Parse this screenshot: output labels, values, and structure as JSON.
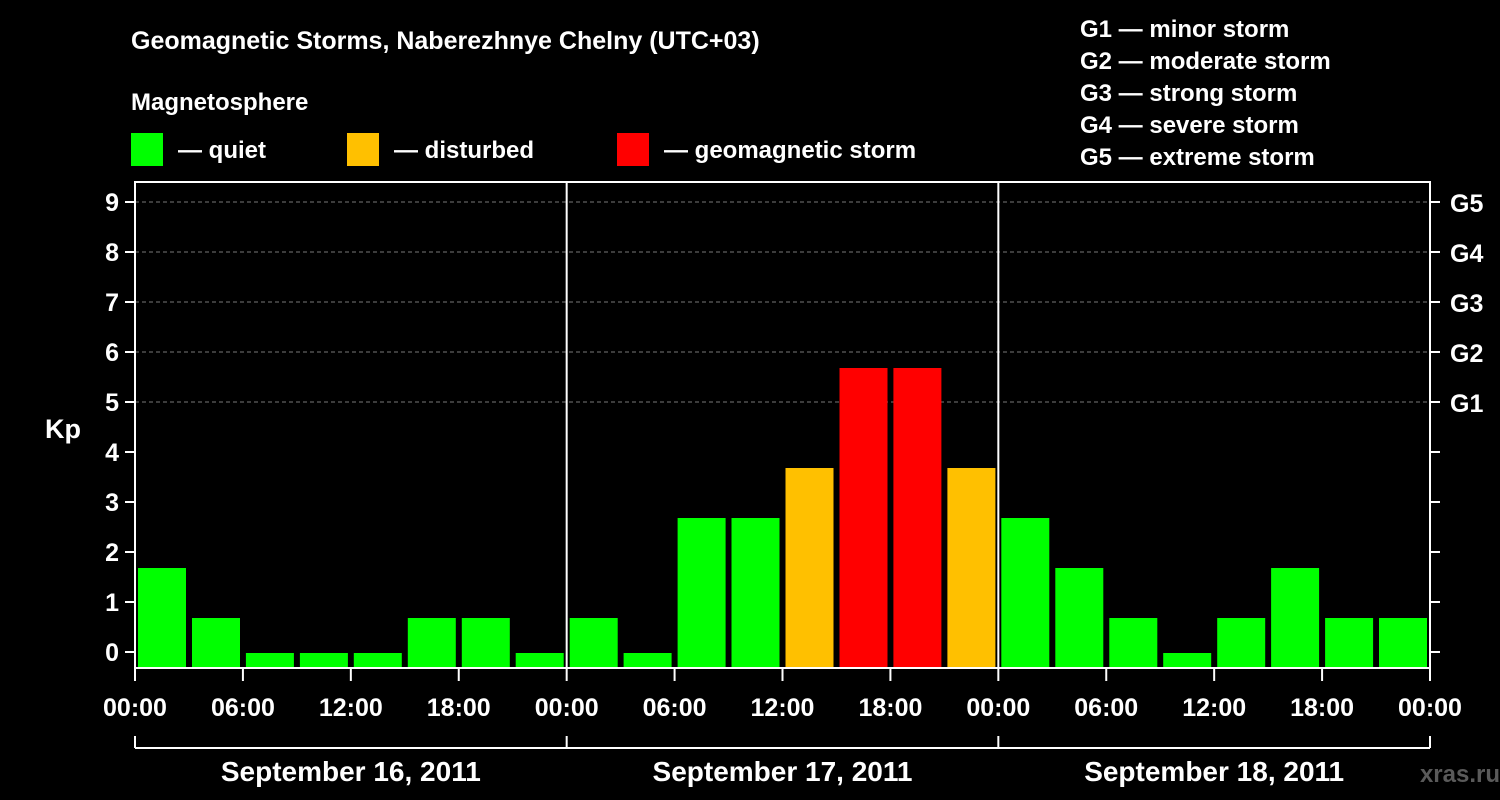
{
  "chart_data": {
    "type": "bar",
    "title": "Geomagnetic Storms, Naberezhnye Chelny (UTC+03)",
    "subtitle": "Magnetosphere",
    "ylabel": "Kp",
    "ylim": [
      0,
      9
    ],
    "y_ticks": [
      "0",
      "1",
      "2",
      "3",
      "4",
      "5",
      "6",
      "7",
      "8",
      "9"
    ],
    "storm_levels": [
      {
        "label": "G1",
        "kp": 5
      },
      {
        "label": "G2",
        "kp": 6
      },
      {
        "label": "G3",
        "kp": 7
      },
      {
        "label": "G4",
        "kp": 8
      },
      {
        "label": "G5",
        "kp": 9
      }
    ],
    "storm_legend": [
      "G1 — minor storm",
      "G2 — moderate storm",
      "G3 — strong storm",
      "G4 — severe storm",
      "G5 — extreme storm"
    ],
    "legend": [
      {
        "label": "— quiet",
        "color": "#00ff00"
      },
      {
        "label": "— disturbed",
        "color": "#ffc000"
      },
      {
        "label": "— geomagnetic storm",
        "color": "#ff0000"
      }
    ],
    "colors": {
      "quiet": "#00ff00",
      "disturbed": "#ffc000",
      "storm": "#ff0000",
      "background": "#000000"
    },
    "x_tick_labels": [
      "00:00",
      "06:00",
      "12:00",
      "18:00",
      "00:00",
      "06:00",
      "12:00",
      "18:00",
      "00:00",
      "06:00",
      "12:00",
      "18:00",
      "00:00"
    ],
    "days": [
      "September 16, 2011",
      "September 17, 2011",
      "September 18, 2011"
    ],
    "series": [
      {
        "values": [
          {
            "day": "September 16, 2011",
            "start": "00:00",
            "kp": 2,
            "level": "quiet"
          },
          {
            "day": "September 16, 2011",
            "start": "03:00",
            "kp": 1,
            "level": "quiet"
          },
          {
            "day": "September 16, 2011",
            "start": "06:00",
            "kp": 0,
            "level": "quiet"
          },
          {
            "day": "September 16, 2011",
            "start": "09:00",
            "kp": 0,
            "level": "quiet"
          },
          {
            "day": "September 16, 2011",
            "start": "12:00",
            "kp": 0,
            "level": "quiet"
          },
          {
            "day": "September 16, 2011",
            "start": "15:00",
            "kp": 1,
            "level": "quiet"
          },
          {
            "day": "September 16, 2011",
            "start": "18:00",
            "kp": 1,
            "level": "quiet"
          },
          {
            "day": "September 16, 2011",
            "start": "21:00",
            "kp": 0,
            "level": "quiet"
          },
          {
            "day": "September 17, 2011",
            "start": "00:00",
            "kp": 1,
            "level": "quiet"
          },
          {
            "day": "September 17, 2011",
            "start": "03:00",
            "kp": 0,
            "level": "quiet"
          },
          {
            "day": "September 17, 2011",
            "start": "06:00",
            "kp": 3,
            "level": "quiet"
          },
          {
            "day": "September 17, 2011",
            "start": "09:00",
            "kp": 3,
            "level": "quiet"
          },
          {
            "day": "September 17, 2011",
            "start": "12:00",
            "kp": 4,
            "level": "disturbed"
          },
          {
            "day": "September 17, 2011",
            "start": "15:00",
            "kp": 6,
            "level": "storm"
          },
          {
            "day": "September 17, 2011",
            "start": "18:00",
            "kp": 6,
            "level": "storm"
          },
          {
            "day": "September 17, 2011",
            "start": "21:00",
            "kp": 4,
            "level": "disturbed"
          },
          {
            "day": "September 18, 2011",
            "start": "00:00",
            "kp": 3,
            "level": "quiet"
          },
          {
            "day": "September 18, 2011",
            "start": "03:00",
            "kp": 2,
            "level": "quiet"
          },
          {
            "day": "September 18, 2011",
            "start": "06:00",
            "kp": 1,
            "level": "quiet"
          },
          {
            "day": "September 18, 2011",
            "start": "09:00",
            "kp": 0,
            "level": "quiet"
          },
          {
            "day": "September 18, 2011",
            "start": "12:00",
            "kp": 1,
            "level": "quiet"
          },
          {
            "day": "September 18, 2011",
            "start": "15:00",
            "kp": 2,
            "level": "quiet"
          },
          {
            "day": "September 18, 2011",
            "start": "18:00",
            "kp": 1,
            "level": "quiet"
          },
          {
            "day": "September 18, 2011",
            "start": "21:00",
            "kp": 1,
            "level": "quiet"
          }
        ]
      }
    ],
    "grid": true,
    "watermark": "xras.ru"
  }
}
